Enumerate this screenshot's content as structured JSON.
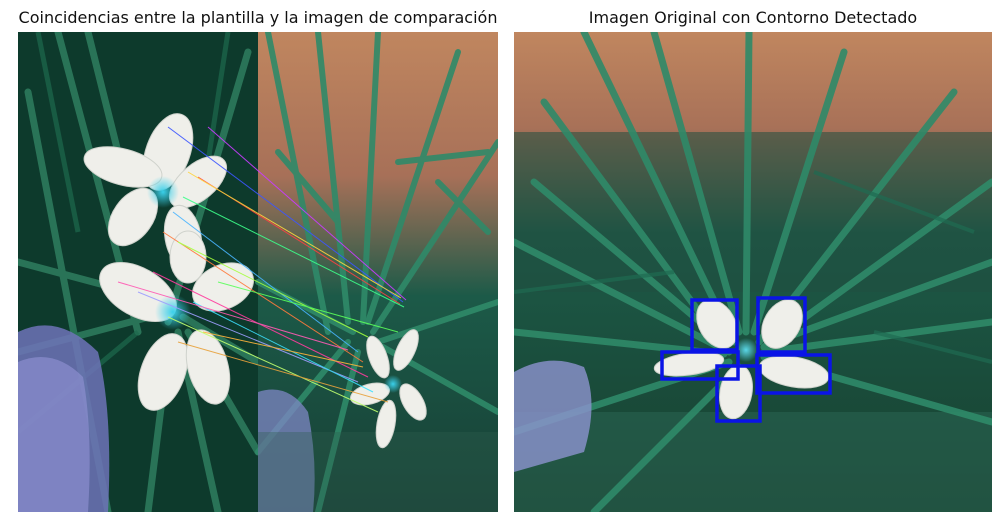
{
  "figure": {
    "left_title": "Coincidencias entre la plantilla y la imagen de comparación",
    "right_title": "Imagen Original con Contorno Detectado"
  },
  "colors": {
    "background": "#ffffff",
    "foliage_dark": "#0f3b2e",
    "foliage_mid": "#2b7a5e",
    "sky": "#b8825e",
    "petal": "#eeeeea",
    "flower_center": "#4fc7d9",
    "contour_box": "#0a14e6"
  },
  "images": {
    "left": "template-vs-comparison-matches",
    "right": "original-with-detected-contour",
    "detected_boxes": 5
  }
}
